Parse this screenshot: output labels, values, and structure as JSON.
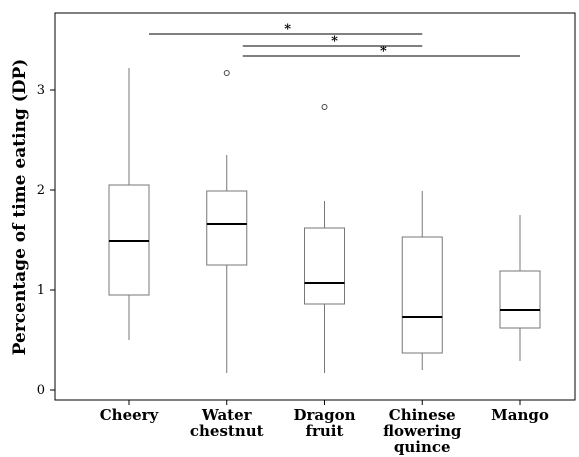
{
  "chart_data": {
    "type": "box",
    "title": "",
    "xlabel": "",
    "ylabel": "Percentage of time eating (DP)",
    "ylim": [
      -0.1,
      3.77
    ],
    "yticks": [
      "0",
      "1",
      "2",
      "3"
    ],
    "grid": false,
    "categories": [
      [
        "Cheery"
      ],
      [
        "Water",
        "chestnut"
      ],
      [
        "Dragon",
        "fruit"
      ],
      [
        "Chinese",
        "flowering",
        "quince"
      ],
      [
        "Mango"
      ]
    ],
    "boxes": [
      {
        "whisker_low": 0.5,
        "q1": 0.95,
        "median": 1.49,
        "q3": 2.05,
        "whisker_high": 3.22,
        "outliers": []
      },
      {
        "whisker_low": 0.17,
        "q1": 1.25,
        "median": 1.66,
        "q3": 1.99,
        "whisker_high": 2.35,
        "outliers": [
          3.17
        ]
      },
      {
        "whisker_low": 0.17,
        "q1": 0.86,
        "median": 1.07,
        "q3": 1.62,
        "whisker_high": 1.89,
        "outliers": [
          2.83
        ]
      },
      {
        "whisker_low": 0.2,
        "q1": 0.37,
        "median": 0.73,
        "q3": 1.53,
        "whisker_high": 1.99,
        "outliers": []
      },
      {
        "whisker_low": 0.29,
        "q1": 0.62,
        "median": 0.8,
        "q3": 1.19,
        "whisker_high": 1.75,
        "outliers": []
      }
    ],
    "significance": [
      {
        "from": 0,
        "to": 3,
        "label": "*"
      },
      {
        "from": 1,
        "to": 3,
        "label": "*"
      },
      {
        "from": 1,
        "to": 4,
        "label": "*"
      }
    ]
  }
}
